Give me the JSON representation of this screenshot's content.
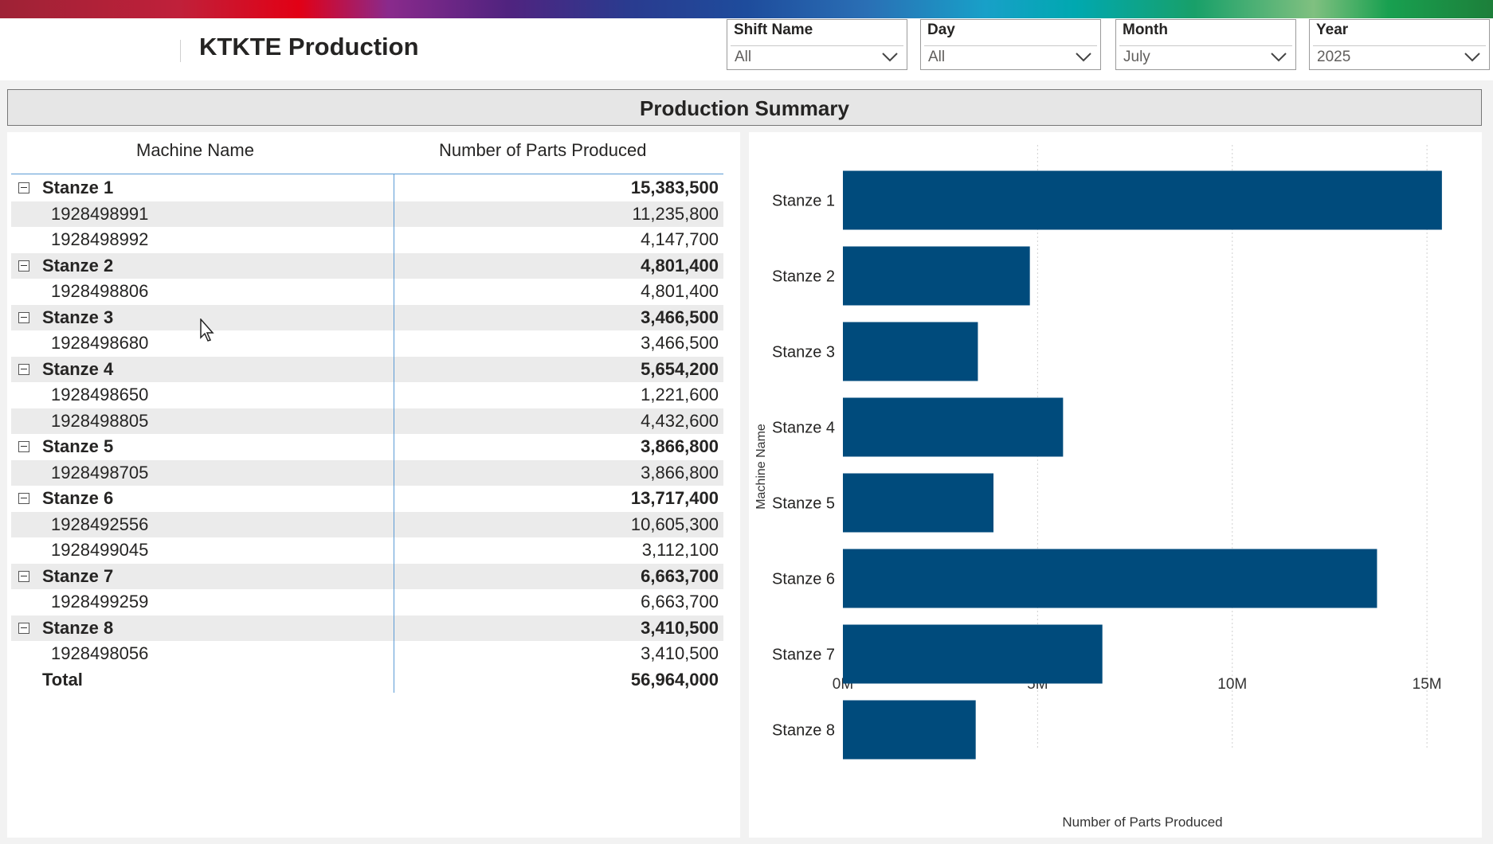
{
  "header": {
    "title": "KTKTE Production"
  },
  "slicers": [
    {
      "label": "Shift Name",
      "value": "All"
    },
    {
      "label": "Day",
      "value": "All"
    },
    {
      "label": "Month",
      "value": "July"
    },
    {
      "label": "Year",
      "value": "2025"
    }
  ],
  "summary": {
    "title": "Production Summary"
  },
  "table": {
    "columns": [
      "Machine Name",
      "Number of Parts Produced"
    ],
    "rows": [
      {
        "kind": "group",
        "name": "Stanze 1",
        "value": "15,383,500"
      },
      {
        "kind": "child",
        "name": "1928498991",
        "value": "11,235,800"
      },
      {
        "kind": "child",
        "name": "1928498992",
        "value": "4,147,700"
      },
      {
        "kind": "group",
        "name": "Stanze 2",
        "value": "4,801,400"
      },
      {
        "kind": "child",
        "name": "1928498806",
        "value": "4,801,400"
      },
      {
        "kind": "group",
        "name": "Stanze 3",
        "value": "3,466,500"
      },
      {
        "kind": "child",
        "name": "1928498680",
        "value": "3,466,500"
      },
      {
        "kind": "group",
        "name": "Stanze 4",
        "value": "5,654,200"
      },
      {
        "kind": "child",
        "name": "1928498650",
        "value": "1,221,600"
      },
      {
        "kind": "child",
        "name": "1928498805",
        "value": "4,432,600"
      },
      {
        "kind": "group",
        "name": "Stanze 5",
        "value": "3,866,800"
      },
      {
        "kind": "child",
        "name": "1928498705",
        "value": "3,866,800"
      },
      {
        "kind": "group",
        "name": "Stanze 6",
        "value": "13,717,400"
      },
      {
        "kind": "child",
        "name": "1928492556",
        "value": "10,605,300"
      },
      {
        "kind": "child",
        "name": "1928499045",
        "value": "3,112,100"
      },
      {
        "kind": "group",
        "name": "Stanze 7",
        "value": "6,663,700"
      },
      {
        "kind": "child",
        "name": "1928499259",
        "value": "6,663,700"
      },
      {
        "kind": "group",
        "name": "Stanze 8",
        "value": "3,410,500"
      },
      {
        "kind": "child",
        "name": "1928498056",
        "value": "3,410,500"
      },
      {
        "kind": "total",
        "name": "Total",
        "value": "56,964,000"
      }
    ]
  },
  "chart_data": {
    "type": "bar",
    "orientation": "horizontal",
    "categories": [
      "Stanze 1",
      "Stanze 2",
      "Stanze 3",
      "Stanze 4",
      "Stanze 5",
      "Stanze 6",
      "Stanze 7",
      "Stanze 8"
    ],
    "values": [
      15383500,
      4801400,
      3466500,
      5654200,
      3866800,
      13717400,
      6663700,
      3410500
    ],
    "xlabel": "Number of Parts Produced",
    "ylabel": "Machine Name",
    "xlim": [
      0,
      16000000
    ],
    "xticks": [
      0,
      5000000,
      10000000,
      15000000
    ],
    "xtick_labels": [
      "0M",
      "5M",
      "10M",
      "15M"
    ],
    "grid": true,
    "bar_color": "#004b7c"
  }
}
